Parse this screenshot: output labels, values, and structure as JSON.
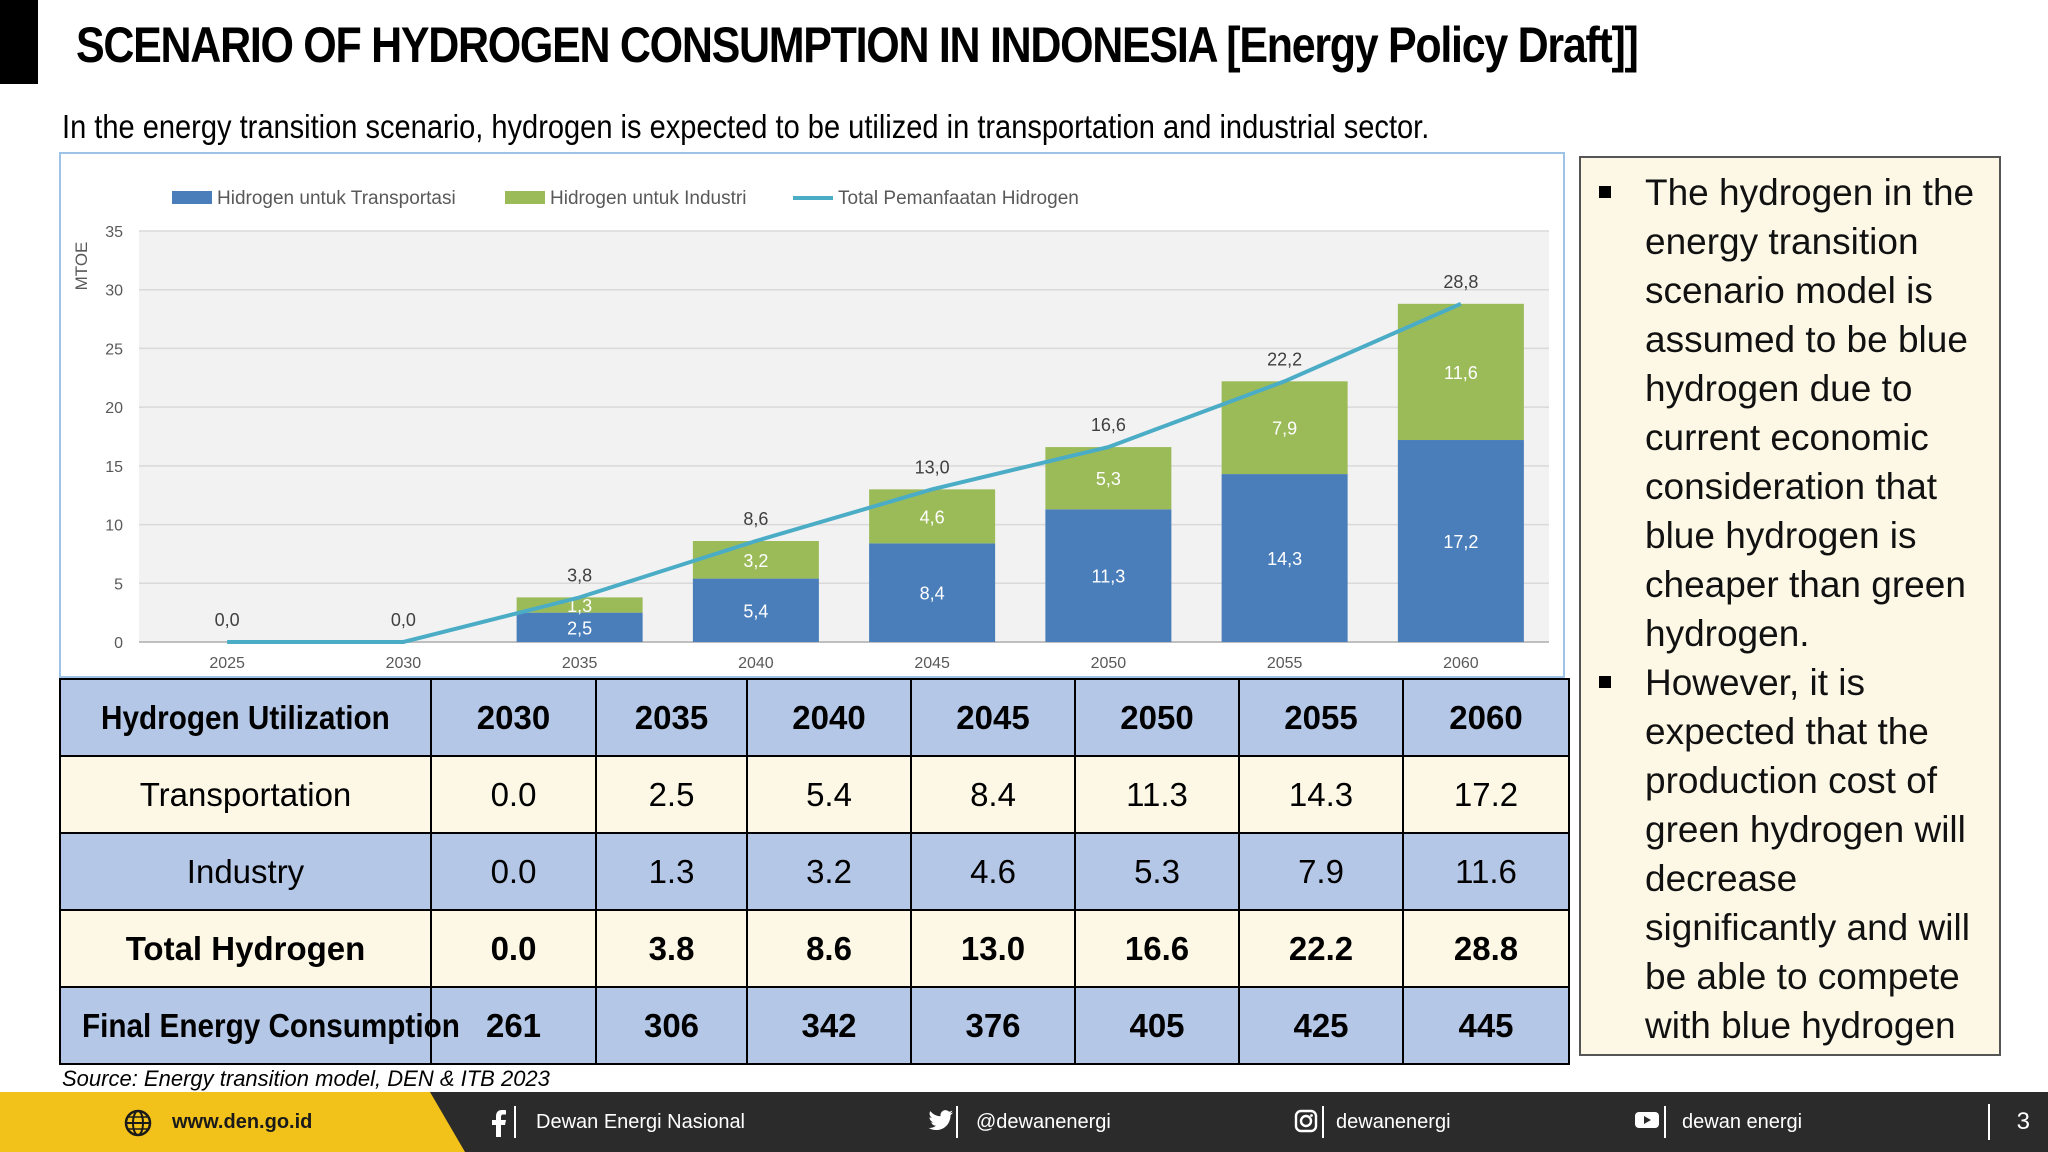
{
  "header": {
    "title": "SCENARIO OF HYDROGEN CONSUMPTION IN INDONESIA [Energy Policy Draft]]",
    "subtitle": "In the energy transition scenario, hydrogen is expected to be utilized in transportation and industrial sector."
  },
  "colors": {
    "transport": "#4a7ebb",
    "industry": "#9bbb59",
    "total_line": "#4bacc6",
    "table_blue": "#b4c7e7",
    "table_cream": "#fdf8e6",
    "footer_yellow": "#f2c21b"
  },
  "chart_data": {
    "type": "bar",
    "stacked": true,
    "categories": [
      "2025",
      "2030",
      "2035",
      "2040",
      "2045",
      "2050",
      "2055",
      "2060"
    ],
    "series": [
      {
        "name": "Hidrogen untuk Transportasi",
        "values": [
          0.0,
          0.0,
          2.5,
          5.4,
          8.4,
          11.3,
          14.3,
          17.2
        ],
        "labels": [
          "0,0",
          "0,0",
          "2,5",
          "5,4",
          "8,4",
          "11,3",
          "14,3",
          "17,2"
        ]
      },
      {
        "name": "Hidrogen untuk Industri",
        "values": [
          0.0,
          0.0,
          1.3,
          3.2,
          4.6,
          5.3,
          7.9,
          11.6
        ],
        "labels": [
          "",
          "",
          "1,3",
          "3,2",
          "4,6",
          "5,3",
          "7,9",
          "11,6"
        ]
      },
      {
        "name": "Total Pemanfaatan Hidrogen",
        "type": "line",
        "values": [
          0.0,
          0.0,
          3.8,
          8.6,
          13.0,
          16.6,
          22.2,
          28.8
        ],
        "labels": [
          "0,0",
          "0,0",
          "3,8",
          "8,6",
          "13,0",
          "16,6",
          "22,2",
          "28,8"
        ]
      }
    ],
    "ylabel": "MTOE",
    "ylim": [
      0,
      35
    ],
    "yticks": [
      "0",
      "5",
      "10",
      "15",
      "20",
      "25",
      "30",
      "35"
    ],
    "grid": true,
    "legend": "top-left"
  },
  "table": {
    "header": [
      "Hydrogen Utilization",
      "2030",
      "2035",
      "2040",
      "2045",
      "2050",
      "2055",
      "2060"
    ],
    "rows": [
      {
        "label": "Transportation",
        "values": [
          "0.0",
          "2.5",
          "5.4",
          "8.4",
          "11.3",
          "14.3",
          "17.2"
        ]
      },
      {
        "label": "Industry",
        "values": [
          "0.0",
          "1.3",
          "3.2",
          "4.6",
          "5.3",
          "7.9",
          "11.6"
        ]
      },
      {
        "label": "Total Hydrogen",
        "values": [
          "0.0",
          "3.8",
          "8.6",
          "13.0",
          "16.6",
          "22.2",
          "28.8"
        ]
      },
      {
        "label": "Final Energy Consumption",
        "values": [
          "261",
          "306",
          "342",
          "376",
          "405",
          "425",
          "445"
        ]
      }
    ]
  },
  "source": "Source: Energy transition model, DEN & ITB 2023",
  "notes": [
    "The hydrogen in the energy transition scenario model  is assumed to be  blue hydrogen due to current economic consideration that blue hydrogen is cheaper than green hydrogen.",
    "However, it is expected that the production cost of green hydrogen will decrease significantly and will be  able to compete with blue hydrogen"
  ],
  "footer": {
    "website": "www.den.go.id",
    "facebook": "Dewan Energi Nasional",
    "twitter": "@dewanenergi",
    "instagram": "dewanenergi",
    "youtube": "dewan energi",
    "page": "3",
    "icons": [
      "globe-icon",
      "facebook-icon",
      "twitter-icon",
      "instagram-icon",
      "youtube-icon"
    ]
  }
}
